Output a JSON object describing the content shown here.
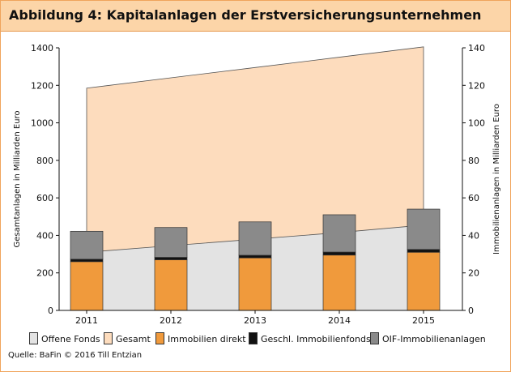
{
  "title": "Abbildung 4: Kapitalanlagen der Erstversicherungsunternehmen",
  "source": "Quelle: BaFin © 2016 Till Entzian",
  "colors": {
    "offene_fonds": "#e3e3e3",
    "gesamt": "#fddcbd",
    "immobilien_direkt": "#f09a3c",
    "geschl_immobilienfonds": "#111111",
    "oif_immobilienanlagen": "#8a8a8a",
    "header_bg": "#fcd5a8"
  },
  "legend": [
    {
      "label": "Offene Fonds",
      "color_key": "offene_fonds"
    },
    {
      "label": "Gesamt",
      "color_key": "gesamt"
    },
    {
      "label": "Immobilien direkt",
      "color_key": "immobilien_direkt"
    },
    {
      "label": "Geschl. Immobilienfonds",
      "color_key": "geschl_immobilienfonds"
    },
    {
      "label": "OIF-Immobilienanlagen",
      "color_key": "oif_immobilienanlagen"
    }
  ],
  "chart_data": {
    "type": "bar",
    "categories": [
      "2011",
      "2012",
      "2013",
      "2014",
      "2015"
    ],
    "left_axis": {
      "label": "Gesamtanlagen in Milliarden Euro",
      "ylim": [
        0,
        1400
      ],
      "ticks": [
        "0",
        "200",
        "400",
        "600",
        "800",
        "1000",
        "1200",
        "1400"
      ]
    },
    "right_axis": {
      "label": "Immobilienanlagen in Milliarden Euro",
      "ylim": [
        0,
        140
      ],
      "ticks": [
        "0",
        "20",
        "40",
        "60",
        "80",
        "100",
        "120",
        "140"
      ]
    },
    "area_series": [
      {
        "name": "Gesamt",
        "axis": "left",
        "values": [
          1185,
          1240,
          1295,
          1350,
          1405
        ]
      },
      {
        "name": "Offene Fonds",
        "axis": "left",
        "values": [
          310,
          345,
          380,
          415,
          455
        ]
      }
    ],
    "bar_series": [
      {
        "name": "Immobilien direkt",
        "axis": "right",
        "values": [
          26,
          27,
          28,
          29.5,
          31
        ]
      },
      {
        "name": "Geschl. Immobilienfonds",
        "axis": "right",
        "values": [
          1.3,
          1.3,
          1.4,
          1.6,
          1.5
        ]
      },
      {
        "name": "OIF-Immobilienanlagen",
        "axis": "right",
        "values": [
          14.9,
          15.9,
          17.8,
          19.9,
          21.5
        ]
      }
    ],
    "grid": false,
    "legend_position": "bottom"
  }
}
